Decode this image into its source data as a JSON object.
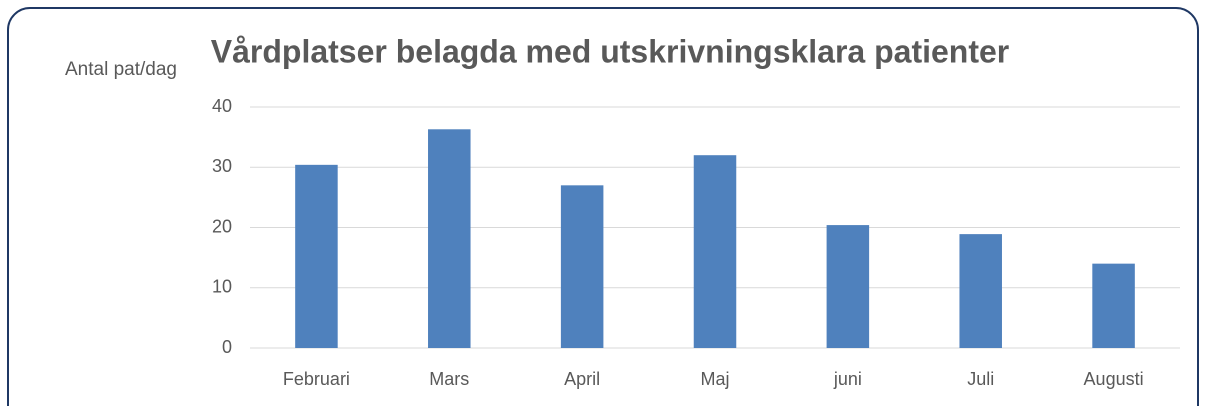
{
  "chart_data": {
    "type": "bar",
    "title": "Vårdplatser belagda med utskrivningsklara patienter",
    "y_label": "Antal pat/dag",
    "categories": [
      "Februari",
      "Mars",
      "April",
      "Maj",
      "juni",
      "Juli",
      "Augusti"
    ],
    "values": [
      30.4,
      36.3,
      27,
      32,
      20.4,
      18.9,
      14
    ],
    "color": "#4f81bd",
    "ylim": [
      0,
      40
    ],
    "yticks": [
      0,
      10,
      20,
      30,
      40
    ],
    "grid": true
  }
}
